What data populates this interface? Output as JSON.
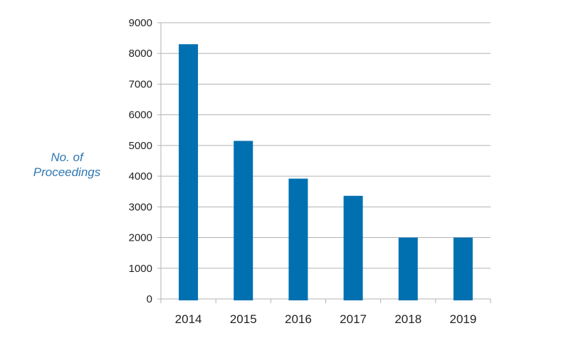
{
  "chart_data": {
    "type": "bar",
    "title": "",
    "xlabel": "",
    "ylabel_lines": [
      "No. of",
      "Proceedings"
    ],
    "categories": [
      "2014",
      "2015",
      "2016",
      "2017",
      "2018",
      "2019"
    ],
    "values": [
      8300,
      5150,
      3920,
      3360,
      2000,
      2000
    ],
    "ylim": [
      0,
      9000
    ],
    "yticks": [
      0,
      1000,
      2000,
      3000,
      4000,
      5000,
      6000,
      7000,
      8000,
      9000
    ],
    "grid": true,
    "legend": "none",
    "bar_color": "#0070b0",
    "grid_color": "#b3b3b3"
  }
}
